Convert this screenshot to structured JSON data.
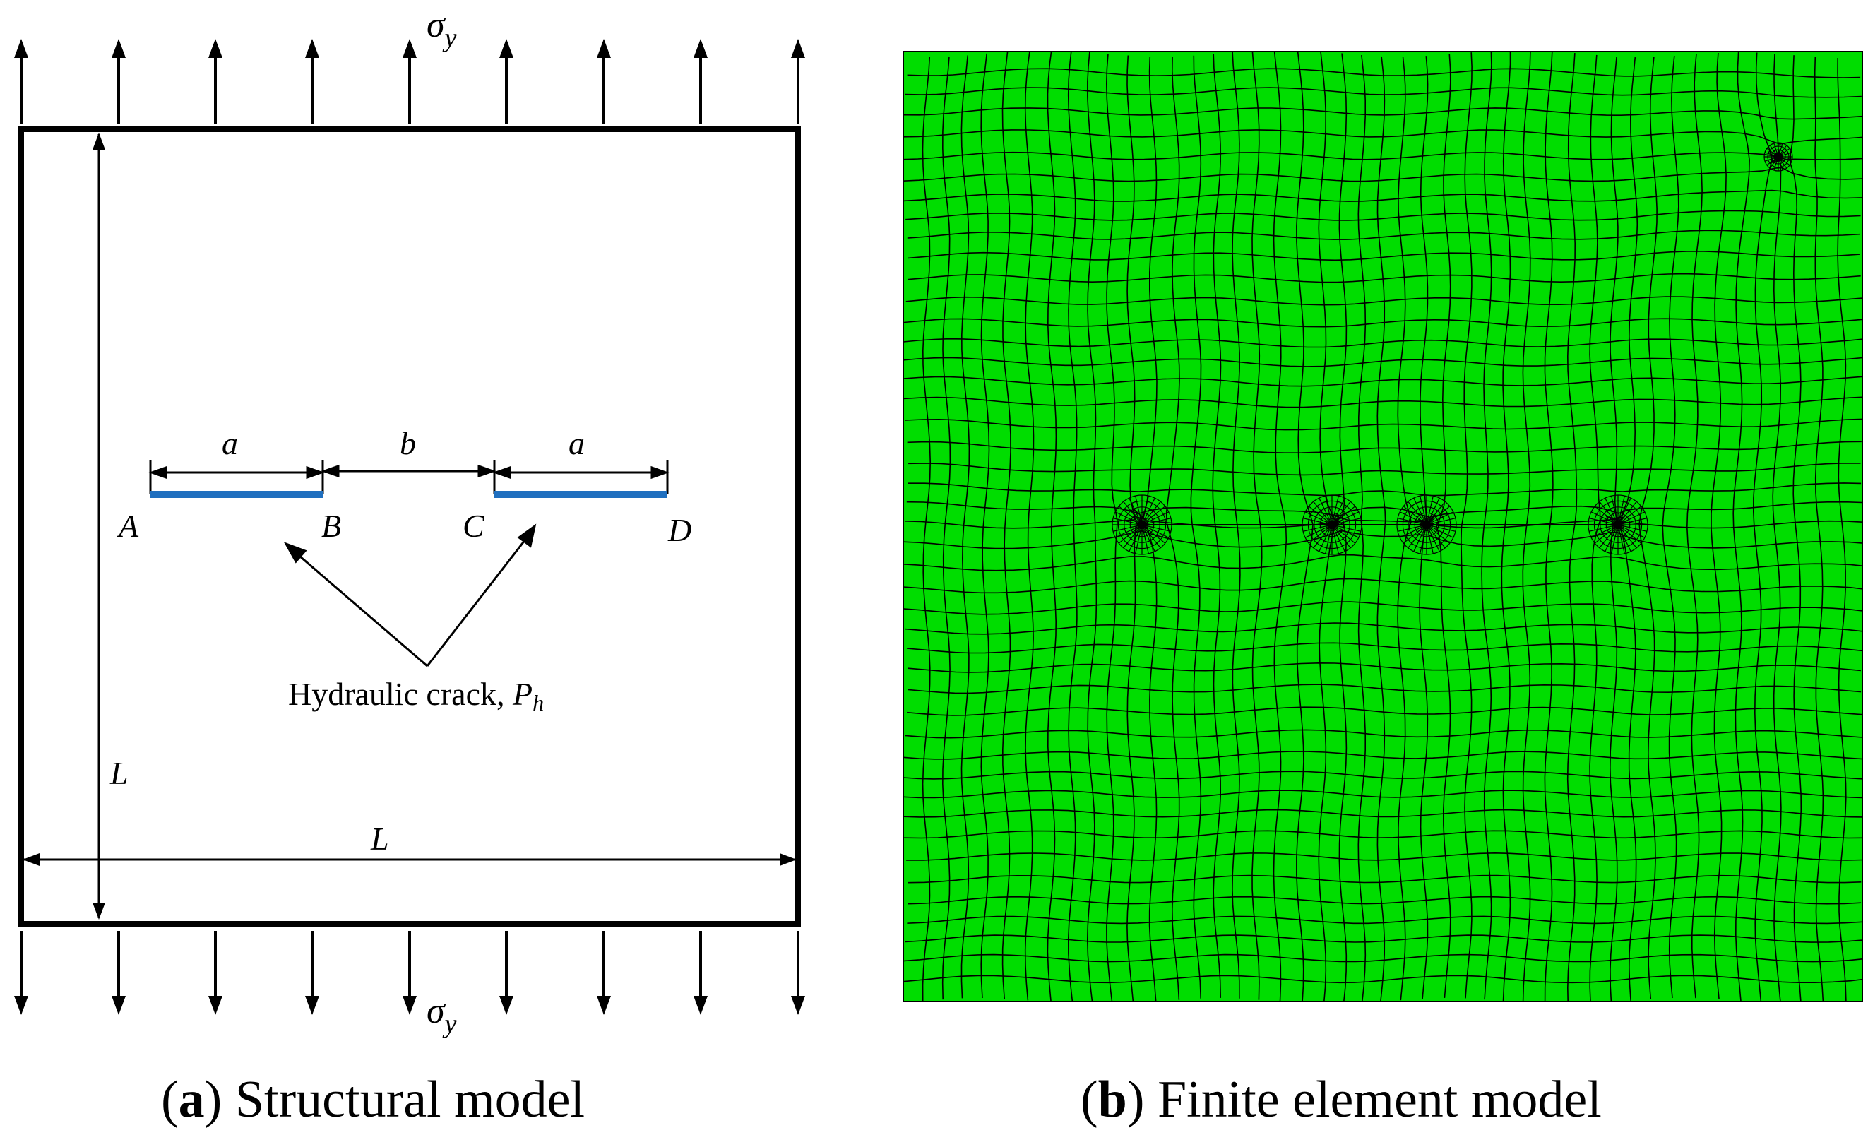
{
  "panel_a": {
    "caption_letter": "a",
    "caption_text": "Structural model",
    "stress_top": "σ",
    "stress_top_sub": "y",
    "stress_bottom": "σ",
    "stress_bottom_sub": "y",
    "dim_a_left": "a",
    "dim_b": "b",
    "dim_a_right": "a",
    "point_A": "A",
    "point_B": "B",
    "point_C": "C",
    "point_D": "D",
    "crack_label": "Hydraulic crack, ",
    "crack_symbol": "P",
    "crack_symbol_sub": "h",
    "dim_L_vertical": "L",
    "dim_L_horizontal": "L",
    "colors": {
      "crack": "#1f6fbf",
      "frame": "#000000"
    }
  },
  "panel_b": {
    "caption_letter": "b",
    "caption_text": "Finite element model",
    "colors": {
      "mesh_fill": "#00dd00",
      "mesh_line": "#000000"
    }
  }
}
